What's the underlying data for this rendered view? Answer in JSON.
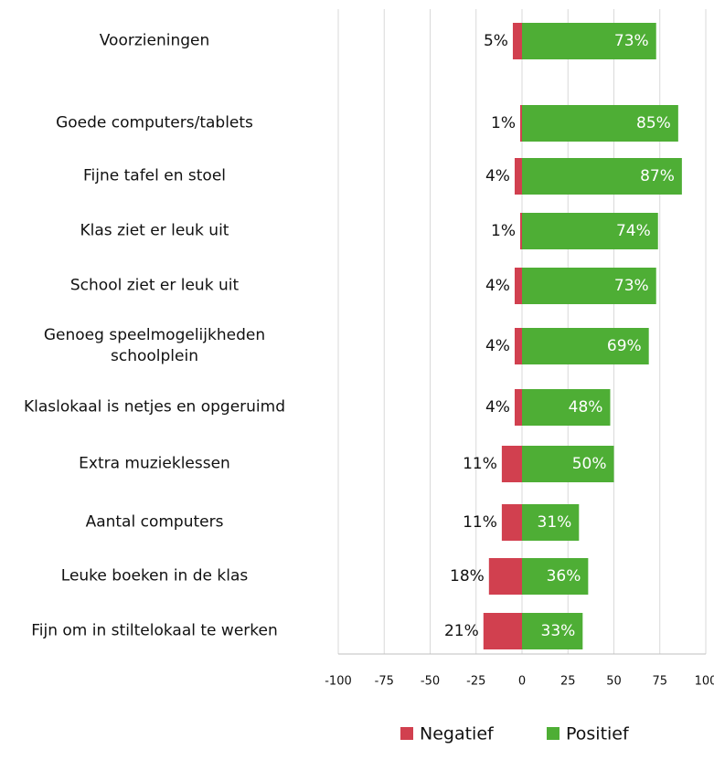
{
  "chart_data": {
    "type": "diverging-bar",
    "categories": [
      "Voorzieningen",
      "Goede computers/tablets",
      "Fijne tafel en stoel",
      "Klas ziet er leuk uit",
      "School ziet er leuk uit",
      "Genoeg speelmogelijkheden schoolplein",
      "Klaslokaal is netjes en opgeruimd",
      "Extra muzieklessen",
      "Aantal computers",
      "Leuke boeken in de klas",
      "Fijn om in stiltelokaal te werken"
    ],
    "series": [
      {
        "name": "Negatief",
        "color": "#d1404f",
        "values": [
          -5,
          -1,
          -4,
          -1,
          -4,
          -4,
          -4,
          -11,
          -11,
          -18,
          -21
        ],
        "value_labels": [
          "5%",
          "1%",
          "4%",
          "1%",
          "4%",
          "4%",
          "4%",
          "11%",
          "11%",
          "18%",
          "21%"
        ]
      },
      {
        "name": "Positief",
        "color": "#4eae35",
        "values": [
          73,
          85,
          87,
          74,
          73,
          69,
          48,
          50,
          31,
          36,
          33
        ],
        "value_labels": [
          "73%",
          "85%",
          "87%",
          "74%",
          "73%",
          "69%",
          "48%",
          "50%",
          "31%",
          "36%",
          "33%"
        ]
      }
    ],
    "xlim": [
      -100,
      100
    ],
    "xticks": [
      -100,
      -75,
      -50,
      -25,
      0,
      25,
      50,
      75,
      100
    ],
    "grid": true,
    "legend": "bottom"
  }
}
